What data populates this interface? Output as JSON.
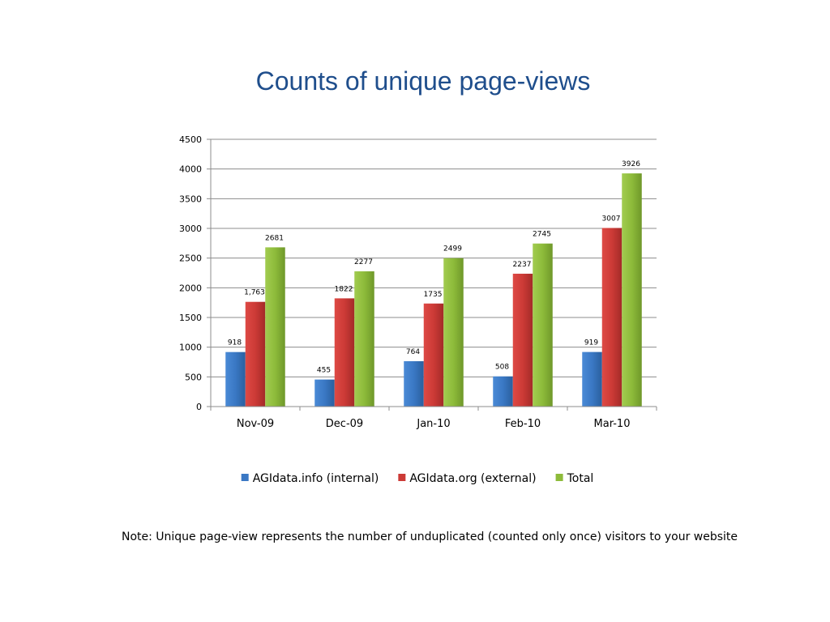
{
  "slide": {
    "title": "Counts of unique page-views",
    "note": "Note: Unique page-view represents the number of unduplicated (counted only once) visitors to your website"
  },
  "chart_data": {
    "type": "bar",
    "title": "",
    "xlabel": "",
    "ylabel": "",
    "categories": [
      "Nov-09",
      "Dec-09",
      "Jan-10",
      "Feb-10",
      "Mar-10"
    ],
    "ylim": [
      0,
      4500
    ],
    "yticks": [
      0,
      500,
      1000,
      1500,
      2000,
      2500,
      3000,
      3500,
      4000,
      4500
    ],
    "grid": true,
    "legend": "bottom",
    "series": [
      {
        "name": "AGIdata.info (internal)",
        "color": "#3a78c4",
        "values": [
          918,
          455,
          764,
          508,
          919
        ],
        "labels": [
          "918",
          "455",
          "764",
          "508",
          "919"
        ]
      },
      {
        "name": "AGIdata.org (external)",
        "color": "#cc3a36",
        "values": [
          1763,
          1822,
          1735,
          2237,
          3007
        ],
        "labels": [
          "1,763",
          "1822",
          "1735",
          "2237",
          "3007"
        ]
      },
      {
        "name": "Total",
        "color": "#8dbb3a",
        "values": [
          2681,
          2277,
          2499,
          2745,
          3926
        ],
        "labels": [
          "2681",
          "2277",
          "2499",
          "2745",
          "3926"
        ]
      }
    ]
  }
}
